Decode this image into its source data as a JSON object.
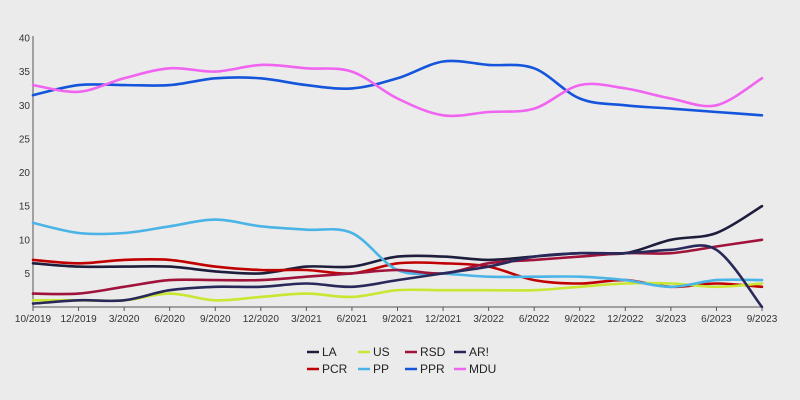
{
  "chart_data": {
    "type": "line",
    "xlabel": "",
    "ylabel": "",
    "ylim": [
      0,
      40
    ],
    "y_ticks": [
      5,
      10,
      15,
      20,
      25,
      30,
      35,
      40
    ],
    "grid": "none",
    "legend_position": "bottom",
    "x": [
      "10/2019",
      "12/2019",
      "3/2020",
      "6/2020",
      "9/2020",
      "12/2020",
      "3/2021",
      "6/2021",
      "9/2021",
      "12/2021",
      "3/2022",
      "6/2022",
      "9/2022",
      "12/2022",
      "3/2023",
      "6/2023",
      "9/2023"
    ],
    "series": [
      {
        "name": "LA",
        "color": "#1e1e3c",
        "values": [
          6.5,
          6.0,
          6.0,
          6.0,
          5.3,
          5.0,
          6.0,
          6.0,
          7.5,
          7.5,
          7.0,
          7.5,
          8.0,
          8.0,
          10.0,
          11.0,
          15.0
        ]
      },
      {
        "name": "PCR",
        "color": "#c00000",
        "values": [
          7.0,
          6.5,
          7.0,
          7.0,
          6.0,
          5.5,
          5.5,
          5.0,
          6.5,
          6.5,
          6.0,
          4.0,
          3.5,
          4.0,
          3.0,
          3.5,
          3.0
        ]
      },
      {
        "name": "US",
        "color": "#c8e632",
        "values": [
          1.0,
          1.0,
          1.0,
          2.0,
          1.0,
          1.5,
          2.0,
          1.5,
          2.5,
          2.5,
          2.5,
          2.5,
          3.0,
          3.5,
          3.5,
          3.0,
          3.5
        ]
      },
      {
        "name": "PP",
        "color": "#4bb4e6",
        "values": [
          12.5,
          11.0,
          11.0,
          12.0,
          13.0,
          12.0,
          11.5,
          11.0,
          5.5,
          5.0,
          4.5,
          4.5,
          4.5,
          4.0,
          3.0,
          4.0,
          4.0
        ]
      },
      {
        "name": "RSD",
        "color": "#a0143c",
        "values": [
          2.0,
          2.0,
          3.0,
          4.0,
          4.0,
          4.0,
          4.5,
          5.0,
          5.5,
          5.0,
          6.5,
          7.0,
          7.5,
          8.0,
          8.0,
          9.0,
          10.0
        ]
      },
      {
        "name": "PPR",
        "color": "#1455dc",
        "values": [
          31.5,
          33.0,
          33.0,
          33.0,
          34.0,
          34.0,
          33.0,
          32.5,
          34.0,
          36.5,
          36.0,
          35.5,
          31.0,
          30.0,
          29.5,
          29.0,
          28.5
        ]
      },
      {
        "name": "AR!",
        "color": "#28285a",
        "values": [
          0.5,
          1.0,
          1.0,
          2.5,
          3.0,
          3.0,
          3.5,
          3.0,
          4.0,
          5.0,
          6.0,
          7.5,
          8.0,
          8.0,
          8.5,
          8.5,
          0.0
        ]
      },
      {
        "name": "MDU",
        "color": "#f064f0",
        "values": [
          33.0,
          32.0,
          34.0,
          35.5,
          35.0,
          36.0,
          35.5,
          35.0,
          31.0,
          28.5,
          29.0,
          29.5,
          33.0,
          32.5,
          31.0,
          30.0,
          34.0
        ]
      }
    ],
    "legend_order": [
      "LA",
      "US",
      "RSD",
      "AR!",
      "PCR",
      "PP",
      "PPR",
      "MDU"
    ]
  }
}
